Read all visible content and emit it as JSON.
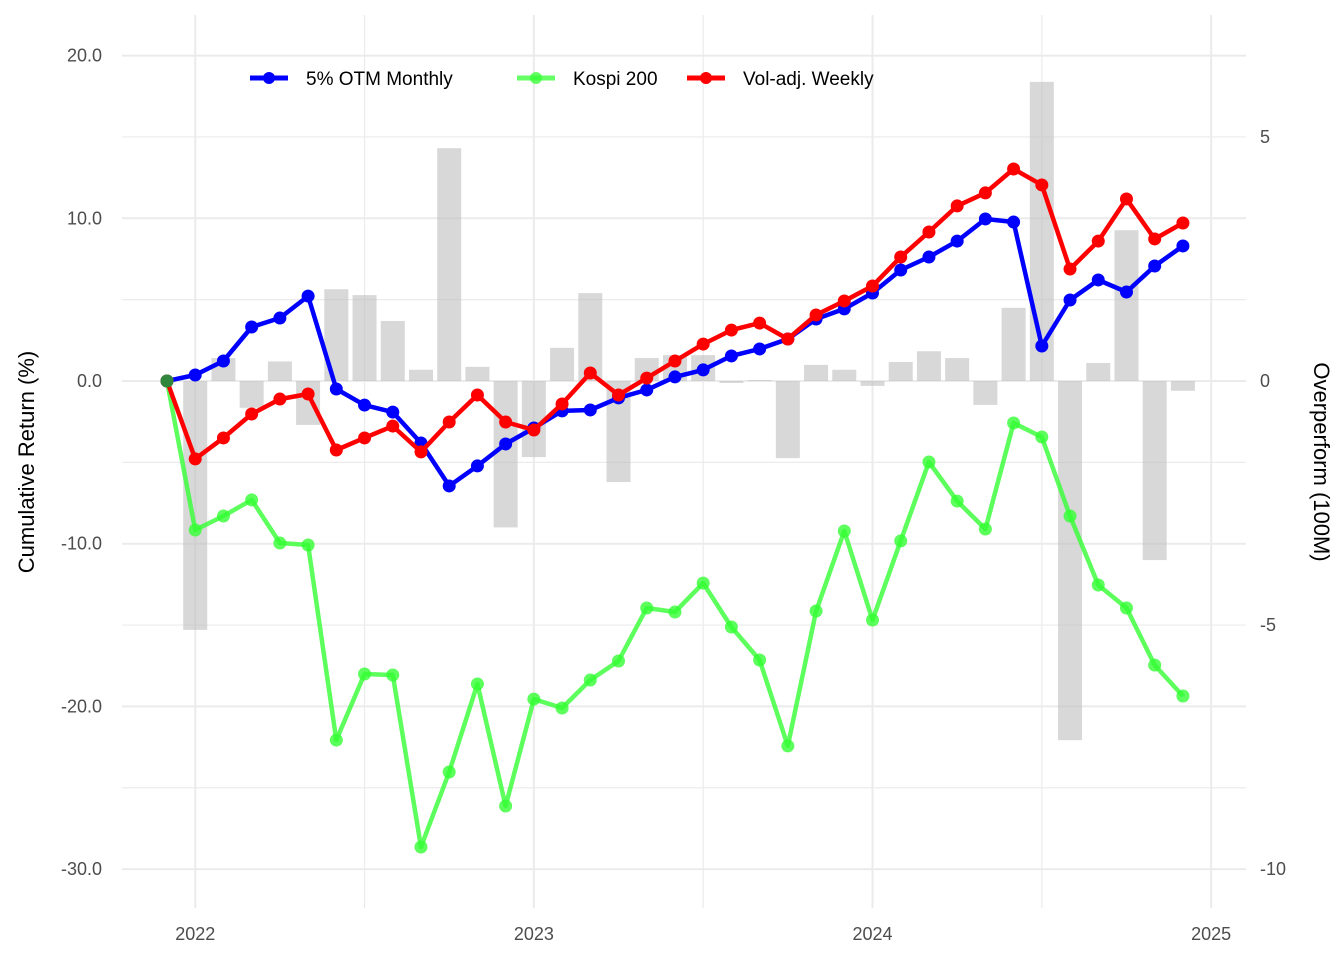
{
  "chart_data": {
    "type": "line",
    "title": "",
    "xlabel": "",
    "ylabel": "Cumulative Return (%)",
    "y2label": "Overperform (100M)",
    "ylim": [
      -32.2,
      22.6
    ],
    "y2lim": [
      -10.73,
      7.53
    ],
    "y_ticks": [
      "20.0",
      "10.0",
      "0.0",
      "-10.0",
      "-20.0",
      "-30.0"
    ],
    "y_tick_values": [
      20,
      10,
      0,
      -10,
      -20,
      -30
    ],
    "y2_ticks": [
      "5",
      "0",
      "-5",
      "-10"
    ],
    "y2_tick_values": [
      5,
      0,
      -5,
      -10
    ],
    "x_ticks": [
      "2022",
      "2023",
      "2024",
      "2025"
    ],
    "x_tick_months": [
      1,
      13,
      25,
      37
    ],
    "grid": true,
    "legend_position": "top-left",
    "x_months": [
      "2021-12",
      "2022-01",
      "2022-02",
      "2022-03",
      "2022-04",
      "2022-05",
      "2022-06",
      "2022-07",
      "2022-08",
      "2022-09",
      "2022-10",
      "2022-11",
      "2022-12",
      "2023-01",
      "2023-02",
      "2023-03",
      "2023-04",
      "2023-05",
      "2023-06",
      "2023-07",
      "2023-08",
      "2023-09",
      "2023-10",
      "2023-11",
      "2023-12",
      "2024-01",
      "2024-02",
      "2024-03",
      "2024-04",
      "2024-05",
      "2024-06",
      "2024-07",
      "2024-08",
      "2024-09",
      "2024-10",
      "2024-11",
      "2024-12"
    ],
    "series": [
      {
        "name": "5% OTM Monthly",
        "color": "#0000ff",
        "axis": "left",
        "values": [
          0,
          0.37,
          1.23,
          3.32,
          3.87,
          5.22,
          -0.49,
          -1.48,
          -1.91,
          -3.81,
          -6.45,
          -5.22,
          -3.87,
          -2.89,
          -1.84,
          -1.78,
          -1.04,
          -0.55,
          0.25,
          0.68,
          1.54,
          1.97,
          2.58,
          3.81,
          4.43,
          5.41,
          6.82,
          7.62,
          8.6,
          9.96,
          9.77,
          2.15,
          4.98,
          6.21,
          5.47,
          7.07,
          8.3
        ]
      },
      {
        "name": "Kospi 200",
        "color": "#33ff33",
        "axis": "left",
        "values": [
          0,
          -9.16,
          -8.3,
          -7.31,
          -9.96,
          -10.08,
          -22.07,
          -18.01,
          -18.07,
          -28.64,
          -24.03,
          -18.62,
          -26.12,
          -19.55,
          -20.1,
          -18.38,
          -17.21,
          -13.95,
          -14.2,
          -12.42,
          -15.12,
          -17.15,
          -22.43,
          -14.14,
          -9.22,
          -14.69,
          -9.83,
          -4.98,
          -7.38,
          -9.1,
          -2.58,
          -3.44,
          -8.3,
          -12.54,
          -13.95,
          -17.46,
          -19.36
        ]
      },
      {
        "name": "Vol-adj. Weekly",
        "color": "#ff0000",
        "axis": "left",
        "values": [
          0,
          -4.79,
          -3.5,
          -2.03,
          -1.11,
          -0.8,
          -4.24,
          -3.5,
          -2.77,
          -4.36,
          -2.52,
          -0.86,
          -2.52,
          -3.01,
          -1.41,
          0.49,
          -0.86,
          0.18,
          1.23,
          2.27,
          3.13,
          3.56,
          2.58,
          4.06,
          4.92,
          5.84,
          7.62,
          9.16,
          10.76,
          11.56,
          13.03,
          12.05,
          6.88,
          8.6,
          11.19,
          8.73,
          9.71
        ]
      }
    ],
    "bars": {
      "name": "Overperform",
      "color": "#bebebe",
      "axis": "right",
      "start_month_index": 1,
      "values": [
        -5.1,
        0.47,
        -0.55,
        0.4,
        -0.9,
        1.88,
        1.76,
        1.23,
        0.23,
        4.77,
        0.29,
        -3.0,
        -1.56,
        0.68,
        1.8,
        -2.07,
        0.47,
        0.53,
        0.53,
        -0.04,
        0.02,
        -1.58,
        0.33,
        0.23,
        -0.1,
        0.39,
        0.61,
        0.47,
        -0.49,
        1.5,
        6.13,
        -7.36,
        0.37,
        3.09,
        -3.67,
        -0.2
      ]
    }
  }
}
